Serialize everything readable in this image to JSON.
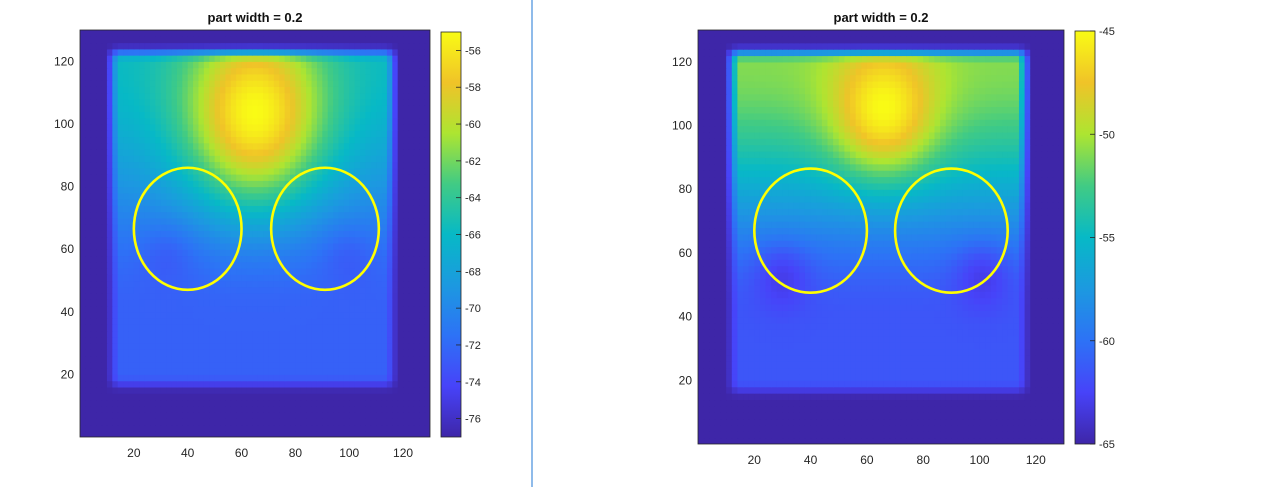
{
  "chart_data": [
    {
      "type": "heatmap",
      "title": "part width = 0.2",
      "xlabel": "",
      "ylabel": "",
      "xlim": [
        0,
        130
      ],
      "ylim": [
        0,
        130
      ],
      "xticks": [
        20,
        40,
        60,
        80,
        100,
        120
      ],
      "yticks": [
        20,
        40,
        60,
        80,
        100,
        120
      ],
      "colorbar": {
        "min": -77,
        "max": -55,
        "ticks": [
          -56,
          -58,
          -60,
          -62,
          -64,
          -66,
          -68,
          -70,
          -72,
          -74,
          -76
        ]
      },
      "field": {
        "background": -77,
        "region": {
          "x": [
            10,
            118
          ],
          "y": [
            15,
            125
          ]
        },
        "base_top": -66,
        "base_bottom": -72.5,
        "hotspot": {
          "x": 65,
          "y": 104,
          "value": -55,
          "sx": 18,
          "sy": 20
        },
        "cold_spots": [
          {
            "x": 32,
            "y": 56,
            "value": -73
          },
          {
            "x": 100,
            "y": 56,
            "value": -73
          }
        ]
      },
      "circles": [
        {
          "cx": 40,
          "cy": 66.5,
          "rx": 20,
          "ry": 19.5
        },
        {
          "cx": 91,
          "cy": 66.5,
          "rx": 20,
          "ry": 19.5
        }
      ],
      "circle_color": "#ffff00"
    },
    {
      "type": "heatmap",
      "title": "part width = 0.2",
      "xlabel": "",
      "ylabel": "",
      "xlim": [
        0,
        130
      ],
      "ylim": [
        0,
        130
      ],
      "xticks": [
        20,
        40,
        60,
        80,
        100,
        120
      ],
      "yticks": [
        20,
        40,
        60,
        80,
        100,
        120
      ],
      "colorbar": {
        "min": -65,
        "max": -45,
        "ticks": [
          -45,
          -50,
          -55,
          -60,
          -65
        ]
      },
      "field": {
        "background": -65,
        "region": {
          "x": [
            10,
            118
          ],
          "y": [
            15,
            125
          ]
        },
        "base_top": -51,
        "base_bottom": -61.5,
        "hotspot": {
          "x": 66,
          "y": 106,
          "value": -45,
          "sx": 13,
          "sy": 14
        },
        "cold_spots": [
          {
            "x": 30,
            "y": 52,
            "value": -63.5
          },
          {
            "x": 101,
            "y": 52,
            "value": -63.5
          }
        ]
      },
      "circles": [
        {
          "cx": 40,
          "cy": 67,
          "rx": 20,
          "ry": 19.5
        },
        {
          "cx": 90,
          "cy": 67,
          "rx": 20,
          "ry": 19.5
        }
      ],
      "circle_color": "#ffff00"
    }
  ],
  "colors": {
    "divider": "#1f77d4"
  }
}
